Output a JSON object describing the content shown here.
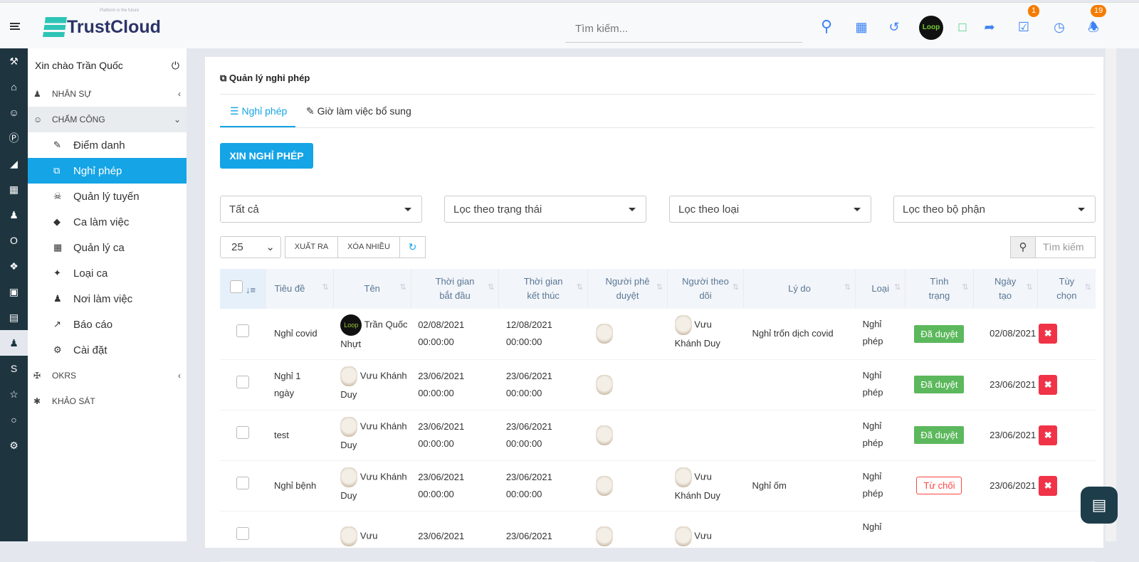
{
  "header": {
    "logo": "TrustCloud",
    "tagline": "Platform is the future",
    "search_placeholder": "Tìm kiếm...",
    "tasks_badge": "1",
    "notif_badge": "19",
    "avatar_text": "Loop"
  },
  "sidebar": {
    "greeting": "Xin chào Trần Quốc",
    "sections": [
      {
        "label": "NHÂN SỰ"
      },
      {
        "label": "CHẤM CÔNG"
      },
      {
        "label": "OKRS"
      },
      {
        "label": "KHẢO SÁT"
      }
    ],
    "items": [
      {
        "label": "Điểm danh"
      },
      {
        "label": "Nghỉ phép"
      },
      {
        "label": "Quản lý tuyến"
      },
      {
        "label": "Ca làm việc"
      },
      {
        "label": "Quản lý ca"
      },
      {
        "label": "Loại ca"
      },
      {
        "label": "Nơi làm việc"
      },
      {
        "label": "Báo cáo"
      },
      {
        "label": "Cài đặt"
      }
    ]
  },
  "main": {
    "title": "Quản lý nghỉ phép",
    "tabs": [
      {
        "label": "Nghỉ phép"
      },
      {
        "label": "Giờ làm việc bổ sung"
      }
    ],
    "create_button": "XIN NGHỈ PHÉP",
    "filters": [
      "Tất cả",
      "Lọc theo trạng thái",
      "Lọc theo loại",
      "Lọc theo bộ phận"
    ],
    "page_size": "25",
    "export": "XUẤT RA",
    "delete_many": "XÓA NHIỀU",
    "search_placeholder": "Tìm kiếm",
    "columns": [
      "Tiêu đề",
      "Tên",
      "Thời gian bắt đầu",
      "Thời gian kết thúc",
      "Người phê duyệt",
      "Người theo dõi",
      "Lý do",
      "Loại",
      "Tình trạng",
      "Ngày tạo",
      "Tùy chọn"
    ],
    "rows": [
      {
        "title": "Nghỉ covid",
        "name": "Trần Quốc Nhựt",
        "start": "02/08/2021 00:00:00",
        "end": "12/08/2021 00:00:00",
        "follower": "Vưu Khánh Duy",
        "reason": "Nghỉ trốn dịch covid",
        "type": "Nghỉ phép",
        "status": "Đã duyệt",
        "created": "02/08/2021"
      },
      {
        "title": "Nghỉ 1 ngày",
        "name": "Vưu Khánh Duy",
        "start": "23/06/2021 00:00:00",
        "end": "23/06/2021 00:00:00",
        "follower": "",
        "reason": "",
        "type": "Nghỉ phép",
        "status": "Đã duyệt",
        "created": "23/06/2021"
      },
      {
        "title": "test",
        "name": "Vưu Khánh Duy",
        "start": "23/06/2021 00:00:00",
        "end": "23/06/2021 00:00:00",
        "follower": "",
        "reason": "",
        "type": "Nghỉ phép",
        "status": "Đã duyệt",
        "created": "23/06/2021"
      },
      {
        "title": "Nghỉ bệnh",
        "name": "Vưu Khánh Duy",
        "start": "23/06/2021 00:00:00",
        "end": "23/06/2021 00:00:00",
        "follower": "Vưu Khánh Duy",
        "reason": "Nghỉ ốm",
        "type": "Nghỉ phép",
        "status": "Từ chối",
        "created": "23/06/2021"
      },
      {
        "title": "",
        "name": "Vưu",
        "start": "23/06/2021",
        "end": "23/06/2021",
        "follower": "Vưu",
        "reason": "",
        "type": "Nghỉ",
        "status": "",
        "created": ""
      }
    ]
  },
  "colors": {
    "accent": "#15a4e6",
    "approved": "#5cb85c",
    "rejected": "#f44336",
    "rail": "#1e3540"
  }
}
